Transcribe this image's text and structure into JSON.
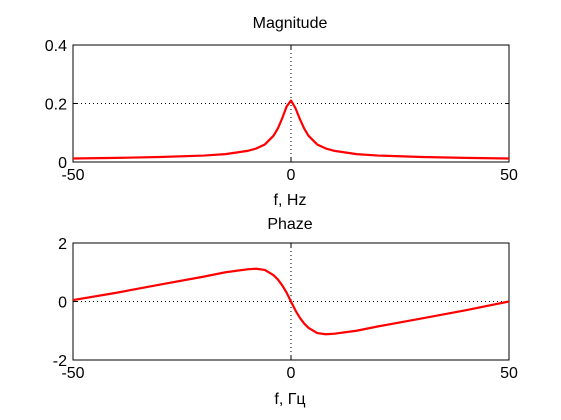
{
  "chart_data": [
    {
      "type": "line",
      "title": "Magnitude",
      "xlabel": "f, Hz",
      "ylabel": "",
      "xlim": [
        -50,
        50
      ],
      "ylim": [
        0,
        0.4
      ],
      "xticks": [
        "-50",
        "0",
        "50"
      ],
      "yticks": [
        "0",
        "0.2",
        "0.4"
      ],
      "grid": true,
      "series": [
        {
          "color": "#ff0000",
          "x": [
            -50,
            -40,
            -30,
            -20,
            -15,
            -10,
            -8,
            -6,
            -4,
            -3,
            -2,
            -1,
            0,
            1,
            2,
            3,
            4,
            6,
            8,
            10,
            15,
            20,
            30,
            40,
            50
          ],
          "y": [
            0.012,
            0.014,
            0.017,
            0.022,
            0.027,
            0.038,
            0.046,
            0.06,
            0.09,
            0.115,
            0.15,
            0.19,
            0.21,
            0.185,
            0.148,
            0.115,
            0.09,
            0.06,
            0.046,
            0.038,
            0.027,
            0.022,
            0.017,
            0.014,
            0.012
          ]
        }
      ]
    },
    {
      "type": "line",
      "title": "Phaze",
      "xlabel": "f, Гц",
      "ylabel": "",
      "xlim": [
        -50,
        50
      ],
      "ylim": [
        -2,
        2
      ],
      "xticks": [
        "-50",
        "0",
        "50"
      ],
      "yticks": [
        "-2",
        "0",
        "2"
      ],
      "grid": true,
      "series": [
        {
          "color": "#ff0000",
          "x": [
            -50,
            -40,
            -30,
            -20,
            -15,
            -10,
            -8,
            -6,
            -4,
            -3,
            -2,
            -1,
            0,
            1,
            2,
            3,
            4,
            6,
            8,
            10,
            15,
            20,
            30,
            40,
            50
          ],
          "y": [
            0.05,
            0.3,
            0.58,
            0.85,
            1.0,
            1.1,
            1.12,
            1.08,
            0.9,
            0.75,
            0.55,
            0.3,
            0.0,
            -0.3,
            -0.55,
            -0.75,
            -0.9,
            -1.08,
            -1.12,
            -1.1,
            -1.0,
            -0.85,
            -0.58,
            -0.3,
            0.0
          ]
        }
      ]
    }
  ]
}
